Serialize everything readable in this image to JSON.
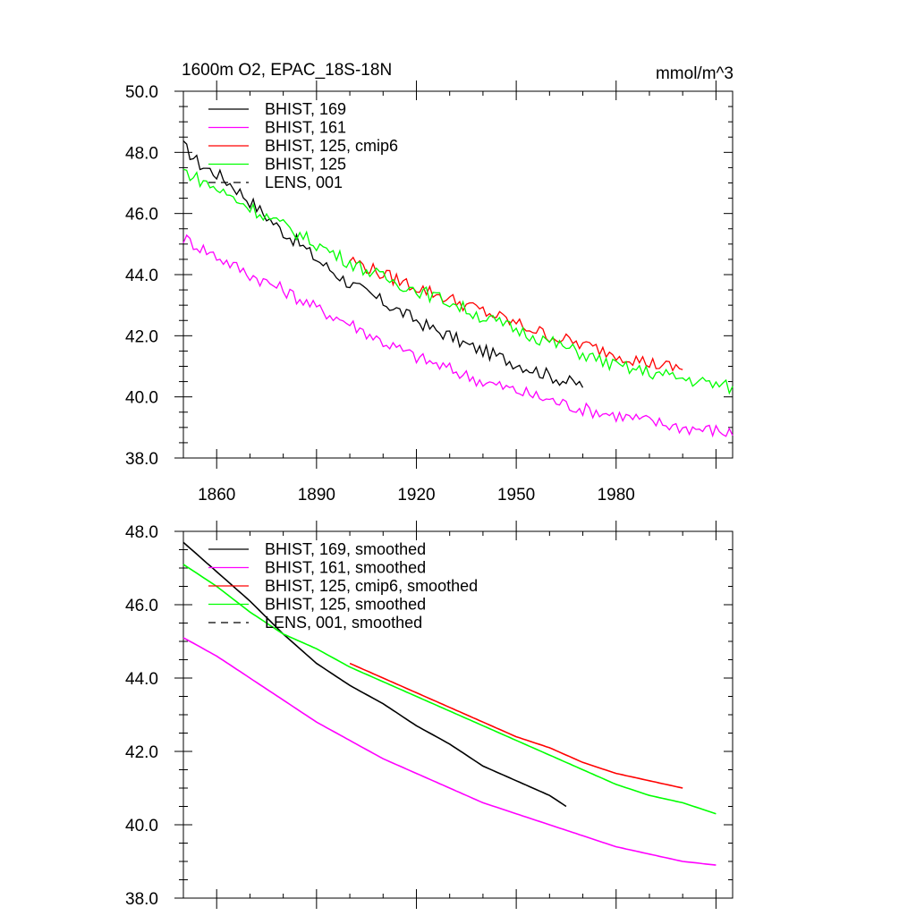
{
  "chart_data": [
    {
      "type": "line",
      "title": "1600m O2, EPAC_18S-18N",
      "units": "mmol/m^3",
      "xlim": [
        1850,
        2015
      ],
      "ylim": [
        38,
        50
      ],
      "xticks": [
        "1860",
        "1890",
        "1920",
        "1950",
        "1980"
      ],
      "yticks": [
        "38.0",
        "40.0",
        "42.0",
        "44.0",
        "46.0",
        "48.0",
        "50.0"
      ],
      "grid": false,
      "legend_position": "top-left",
      "series": [
        {
          "name": "BHIST, 169",
          "color": "#000000",
          "dash": "",
          "x": [
            1850,
            1855,
            1860,
            1865,
            1870,
            1875,
            1880,
            1885,
            1890,
            1895,
            1900,
            1905,
            1910,
            1915,
            1920,
            1925,
            1930,
            1935,
            1940,
            1945,
            1950,
            1955,
            1960,
            1965,
            1970
          ],
          "y": [
            48.2,
            47.6,
            47.3,
            46.9,
            46.4,
            45.9,
            45.4,
            45.0,
            44.5,
            44.1,
            43.7,
            43.4,
            43.1,
            42.8,
            42.5,
            42.2,
            42.0,
            41.7,
            41.5,
            41.3,
            41.1,
            40.9,
            40.7,
            40.5,
            40.4
          ]
        },
        {
          "name": "BHIST, 161",
          "color": "#ff00ff",
          "dash": "",
          "x": [
            1850,
            1860,
            1870,
            1880,
            1890,
            1900,
            1910,
            1920,
            1930,
            1940,
            1950,
            1960,
            1970,
            1980,
            1990,
            2000,
            2010,
            2015
          ],
          "y": [
            45.2,
            44.6,
            44.0,
            43.5,
            42.9,
            42.4,
            41.8,
            41.3,
            40.9,
            40.5,
            40.2,
            39.9,
            39.6,
            39.4,
            39.2,
            39.0,
            38.9,
            38.8
          ]
        },
        {
          "name": "BHIST, 125, cmip6",
          "color": "#ff0000",
          "dash": "",
          "x": [
            1900,
            1910,
            1920,
            1930,
            1940,
            1950,
            1960,
            1970,
            1980,
            1990,
            2000
          ],
          "y": [
            44.5,
            44.0,
            43.6,
            43.2,
            42.8,
            42.4,
            42.0,
            41.7,
            41.4,
            41.1,
            40.9
          ]
        },
        {
          "name": "BHIST, 125",
          "color": "#00ff00",
          "dash": "",
          "x": [
            1850,
            1860,
            1870,
            1880,
            1890,
            1900,
            1910,
            1920,
            1930,
            1940,
            1950,
            1960,
            1970,
            1980,
            1990,
            2000,
            2010,
            2015
          ],
          "y": [
            47.4,
            46.8,
            46.2,
            45.6,
            45.0,
            44.4,
            43.9,
            43.5,
            43.1,
            42.6,
            42.2,
            41.8,
            41.4,
            41.0,
            40.8,
            40.6,
            40.4,
            40.3
          ]
        },
        {
          "name": "LENS, 001",
          "color": "#000000",
          "dash": "8,6",
          "x": [],
          "y": []
        }
      ]
    },
    {
      "type": "line",
      "xlim": [
        1850,
        2015
      ],
      "ylim": [
        38,
        48
      ],
      "xticks": [],
      "yticks": [
        "38.0",
        "40.0",
        "42.0",
        "44.0",
        "46.0",
        "48.0"
      ],
      "grid": false,
      "legend_position": "top-left",
      "series": [
        {
          "name": "BHIST, 169, smoothed",
          "color": "#000000",
          "dash": "",
          "x": [
            1850,
            1860,
            1870,
            1880,
            1890,
            1900,
            1910,
            1920,
            1930,
            1940,
            1950,
            1960,
            1965
          ],
          "y": [
            47.7,
            46.9,
            46.1,
            45.2,
            44.4,
            43.8,
            43.3,
            42.7,
            42.2,
            41.6,
            41.2,
            40.8,
            40.5
          ]
        },
        {
          "name": "BHIST, 161, smoothed",
          "color": "#ff00ff",
          "dash": "",
          "x": [
            1850,
            1860,
            1870,
            1880,
            1890,
            1900,
            1910,
            1920,
            1930,
            1940,
            1950,
            1960,
            1970,
            1980,
            1990,
            2000,
            2010
          ],
          "y": [
            45.1,
            44.6,
            44.0,
            43.4,
            42.8,
            42.3,
            41.8,
            41.4,
            41.0,
            40.6,
            40.3,
            40.0,
            39.7,
            39.4,
            39.2,
            39.0,
            38.9
          ]
        },
        {
          "name": "BHIST, 125, cmip6, smoothed",
          "color": "#ff0000",
          "dash": "",
          "x": [
            1900,
            1910,
            1920,
            1930,
            1940,
            1950,
            1960,
            1970,
            1980,
            1990,
            2000
          ],
          "y": [
            44.4,
            44.0,
            43.6,
            43.2,
            42.8,
            42.4,
            42.1,
            41.7,
            41.4,
            41.2,
            41.0
          ]
        },
        {
          "name": "BHIST, 125, smoothed",
          "color": "#00ff00",
          "dash": "",
          "x": [
            1850,
            1860,
            1870,
            1880,
            1890,
            1900,
            1910,
            1920,
            1930,
            1940,
            1950,
            1960,
            1970,
            1980,
            1990,
            2000,
            2010
          ],
          "y": [
            47.1,
            46.5,
            45.8,
            45.2,
            44.8,
            44.3,
            43.9,
            43.5,
            43.1,
            42.7,
            42.3,
            41.9,
            41.5,
            41.1,
            40.8,
            40.6,
            40.3
          ]
        },
        {
          "name": "LENS, 001, smoothed",
          "color": "#000000",
          "dash": "8,6",
          "x": [],
          "y": []
        }
      ]
    }
  ]
}
